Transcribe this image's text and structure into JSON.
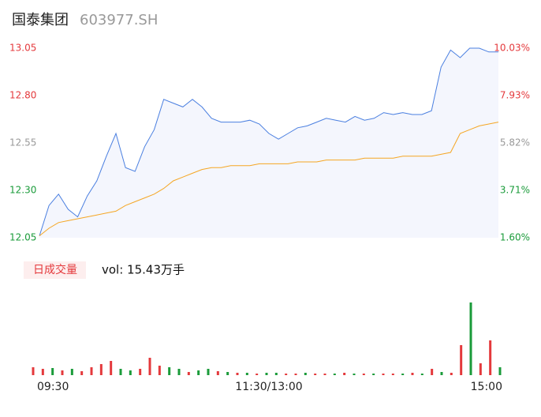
{
  "chart_data": {
    "type": "line",
    "title": "国泰集团",
    "subtitle": "603977.SH",
    "xlim": [
      0,
      240
    ],
    "xticks": [
      {
        "value": 0,
        "label": "09:30"
      },
      {
        "value": 120,
        "label": "11:30/13:00"
      },
      {
        "value": 240,
        "label": "15:00"
      }
    ],
    "ylim": [
      12.05,
      13.05
    ],
    "yticks": [
      {
        "value": 12.05,
        "label": "12.05"
      },
      {
        "value": 12.3,
        "label": "12.30"
      },
      {
        "value": 12.55,
        "label": "12.55"
      },
      {
        "value": 12.8,
        "label": "12.80"
      },
      {
        "value": 13.05,
        "label": "13.05"
      }
    ],
    "ytick_colors": [
      "#1a9b3a",
      "#1a9b3a",
      "#999999",
      "#e4393c",
      "#e4393c"
    ],
    "y2lim": [
      1.6,
      10.03
    ],
    "y2ticks": [
      {
        "value": 1.6,
        "label": "1.60%"
      },
      {
        "value": 3.71,
        "label": "3.71%"
      },
      {
        "value": 5.82,
        "label": "5.82%"
      },
      {
        "value": 7.93,
        "label": "7.93%"
      },
      {
        "value": 10.03,
        "label": "10.03%"
      }
    ],
    "x": [
      0,
      5,
      10,
      15,
      20,
      25,
      30,
      35,
      40,
      45,
      50,
      55,
      60,
      65,
      70,
      75,
      80,
      85,
      90,
      95,
      100,
      105,
      110,
      115,
      120,
      125,
      130,
      135,
      140,
      145,
      150,
      155,
      160,
      165,
      170,
      175,
      180,
      185,
      190,
      195,
      200,
      205,
      210,
      215,
      220,
      225,
      230,
      235,
      240
    ],
    "series": [
      {
        "color": "#4a7fe0",
        "values": [
          12.06,
          12.22,
          12.28,
          12.2,
          12.16,
          12.27,
          12.35,
          12.48,
          12.6,
          12.42,
          12.4,
          12.53,
          12.62,
          12.78,
          12.76,
          12.74,
          12.78,
          12.74,
          12.68,
          12.66,
          12.66,
          12.66,
          12.67,
          12.65,
          12.6,
          12.57,
          12.6,
          12.63,
          12.64,
          12.66,
          12.68,
          12.67,
          12.66,
          12.69,
          12.67,
          12.68,
          12.71,
          12.7,
          12.71,
          12.7,
          12.7,
          12.72,
          12.95,
          13.04,
          13.0,
          13.05,
          13.05,
          13.03,
          13.03
        ]
      },
      {
        "color": "#f5a623",
        "values": [
          12.06,
          12.1,
          12.13,
          12.14,
          12.15,
          12.16,
          12.17,
          12.18,
          12.19,
          12.22,
          12.24,
          12.26,
          12.28,
          12.31,
          12.35,
          12.37,
          12.39,
          12.41,
          12.42,
          12.42,
          12.43,
          12.43,
          12.43,
          12.44,
          12.44,
          12.44,
          12.44,
          12.45,
          12.45,
          12.45,
          12.46,
          12.46,
          12.46,
          12.46,
          12.47,
          12.47,
          12.47,
          12.47,
          12.48,
          12.48,
          12.48,
          12.48,
          12.49,
          12.5,
          12.6,
          12.62,
          12.64,
          12.65,
          12.66
        ]
      }
    ],
    "volume_label": "日成交量",
    "volume_text": "vol: 15.43万手",
    "volume": {
      "ylim": [
        0,
        100
      ],
      "values": [
        10,
        8,
        9,
        6,
        8,
        5,
        10,
        14,
        18,
        8,
        6,
        8,
        22,
        12,
        10,
        8,
        4,
        6,
        8,
        5,
        4,
        3,
        3,
        2,
        3,
        3,
        2,
        2,
        3,
        2,
        2,
        2,
        3,
        2,
        2,
        2,
        2,
        2,
        2,
        3,
        2,
        8,
        4,
        3,
        38,
        92,
        15,
        44,
        10
      ],
      "colors": [
        "#e4393c",
        "#e4393c",
        "#1a9b3a",
        "#e4393c",
        "#1a9b3a",
        "#e4393c",
        "#e4393c",
        "#e4393c",
        "#e4393c",
        "#1a9b3a",
        "#1a9b3a",
        "#e4393c",
        "#e4393c",
        "#e4393c",
        "#1a9b3a",
        "#1a9b3a",
        "#e4393c",
        "#1a9b3a",
        "#1a9b3a",
        "#e4393c",
        "#1a9b3a",
        "#e4393c",
        "#1a9b3a",
        "#e4393c",
        "#1a9b3a",
        "#1a9b3a",
        "#e4393c",
        "#e4393c",
        "#1a9b3a",
        "#e4393c",
        "#e4393c",
        "#1a9b3a",
        "#e4393c",
        "#1a9b3a",
        "#e4393c",
        "#1a9b3a",
        "#e4393c",
        "#e4393c",
        "#1a9b3a",
        "#e4393c",
        "#1a9b3a",
        "#e4393c",
        "#1a9b3a",
        "#e4393c",
        "#e4393c",
        "#1a9b3a",
        "#e4393c",
        "#e4393c",
        "#1a9b3a"
      ]
    }
  }
}
